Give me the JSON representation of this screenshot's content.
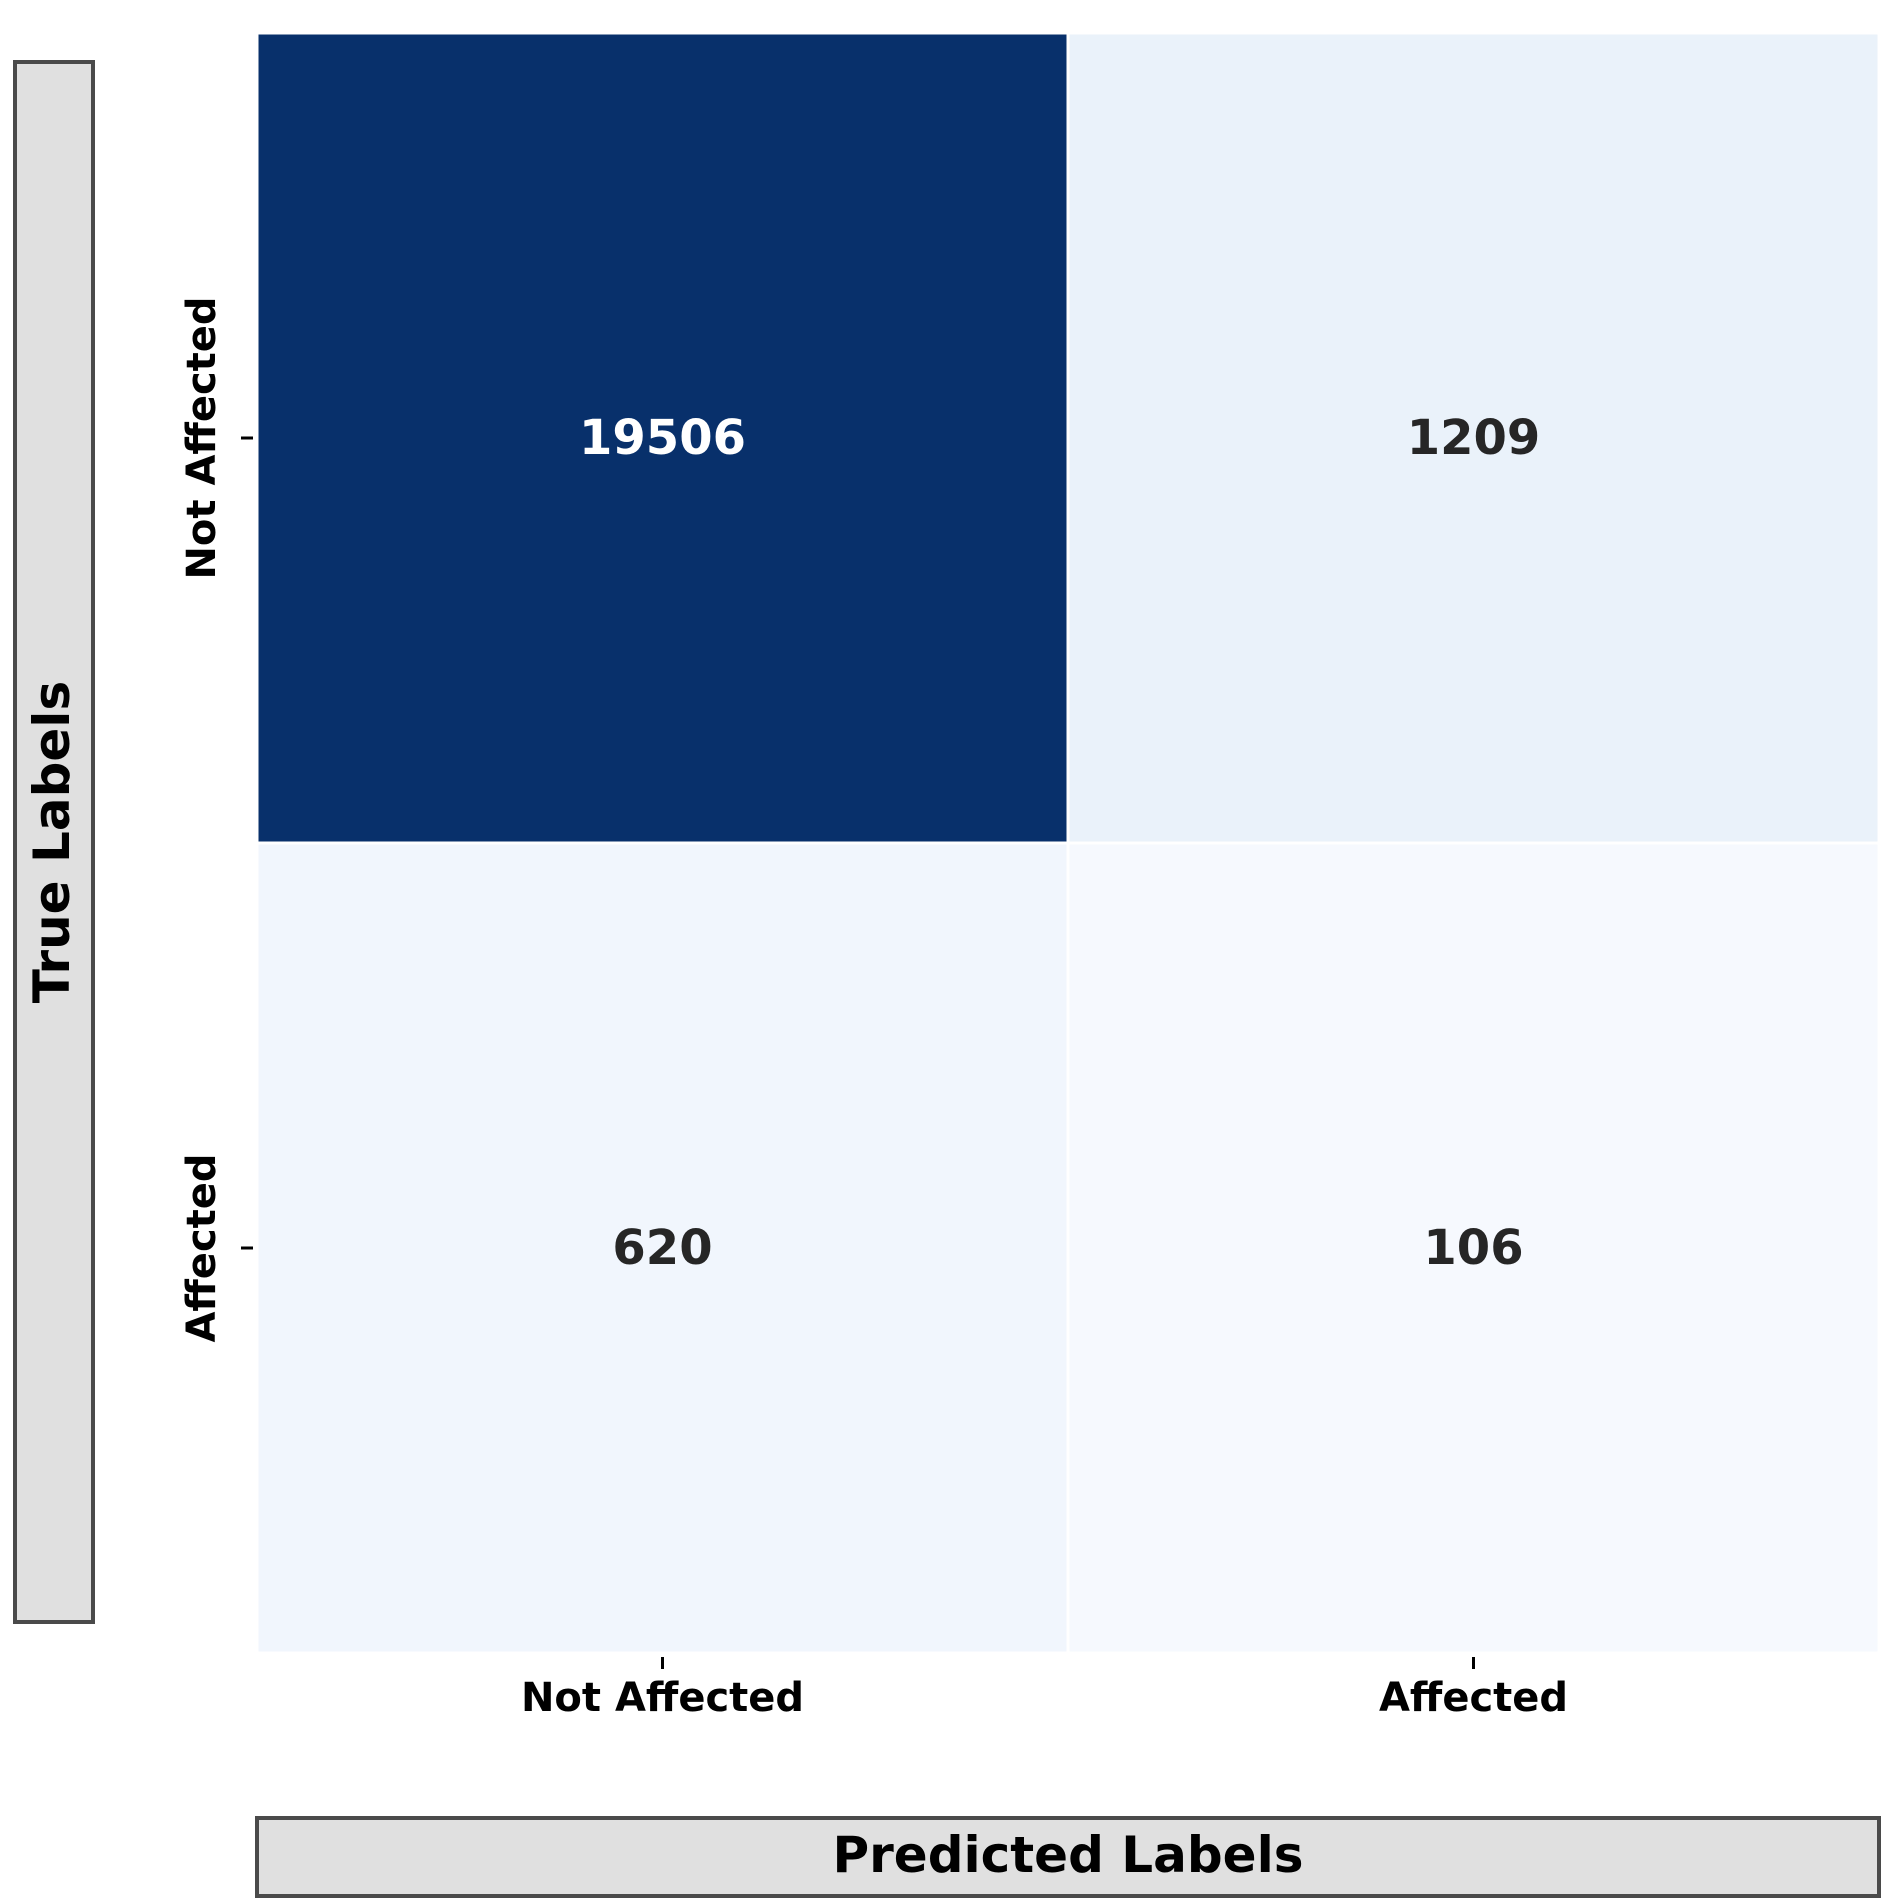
{
  "chart_data": {
    "type": "heatmap",
    "x_categories": [
      "Not Affected",
      "Affected"
    ],
    "y_categories": [
      "Not Affected",
      "Affected"
    ],
    "values": [
      [
        19506,
        1209
      ],
      [
        620,
        106
      ]
    ],
    "xlabel": "Predicted Labels",
    "ylabel": "True Labels",
    "colormap": "Blues",
    "colorbar": false,
    "cell_colors": [
      [
        "#08306b",
        "#eaf2fa"
      ],
      [
        "#f1f6fd",
        "#f6f9fe"
      ]
    ],
    "text_colors": [
      [
        "#ffffff",
        "#262626"
      ],
      [
        "#262626",
        "#262626"
      ]
    ]
  }
}
